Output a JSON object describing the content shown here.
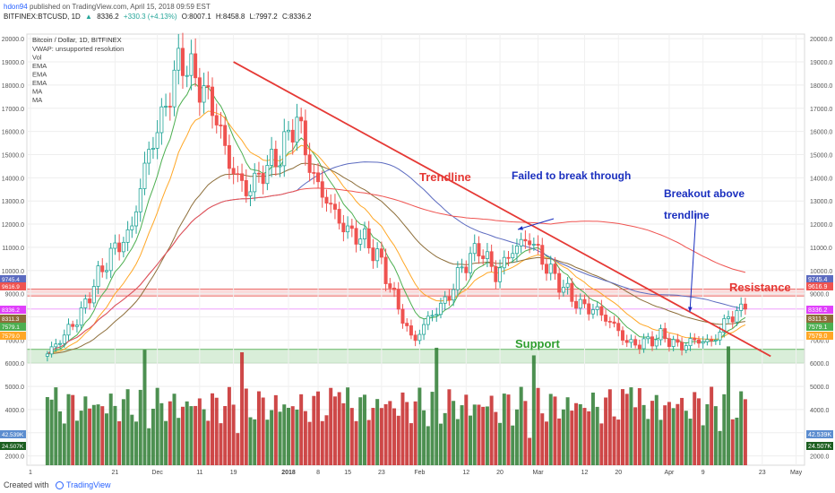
{
  "header": {
    "user": "hdon94",
    "published_text": "published on TradingView.com, April 15, 2018 09:59 EST",
    "symbol": "BITFINEX:BTCUSD, 1D",
    "last": "8336.2",
    "change": "+330.3 (+4.13%)",
    "ohlc": {
      "o": "O:8007.1",
      "h": "H:8458.8",
      "l": "L:7997.2",
      "c": "C:8336.2"
    }
  },
  "footer": {
    "created": "Created with",
    "brand": "TradingView"
  },
  "colors": {
    "up": "#26a69a",
    "down": "#ef5350",
    "trendline": "#e53935",
    "ema_fast": "#4caf50",
    "ema_mid": "#ffa726",
    "ema_slow": "#8d6e3a",
    "ma_blue": "#5c6bc0",
    "ma_red": "#ef5350",
    "annotation_blue": "#1a2fbf",
    "support": "#2e9e2e",
    "resistance": "#e53935"
  },
  "chart_data": {
    "type": "candlestick",
    "title": "Bitcoin / Dollar, 1D, BITFINEX",
    "indicators": [
      "VWAP: unsupported resolution",
      "Vol",
      "EMA",
      "EMA",
      "EMA",
      "MA",
      "MA"
    ],
    "x_ticks": [
      "1",
      "21",
      "Dec",
      "11",
      "19",
      "2018",
      "8",
      "15",
      "23",
      "Feb",
      "12",
      "20",
      "Mar",
      "12",
      "20",
      "Apr",
      "9",
      "23",
      "May"
    ],
    "y_ticks": [
      20000,
      19000,
      18000,
      17000,
      16000,
      15000,
      14000,
      13000,
      12000,
      11000,
      10000,
      9000,
      8000,
      7000,
      6000,
      5000,
      4000,
      3000,
      2000
    ],
    "y_range": [
      1600,
      20200
    ],
    "price_anchors": [
      6400,
      7200,
      8100,
      9700,
      10900,
      11600,
      14900,
      16800,
      19200,
      18200,
      17000,
      14500,
      13400,
      14300,
      15000,
      16600,
      14000,
      12800,
      11700,
      11400,
      10500,
      8600,
      6900,
      8000,
      8700,
      10200,
      11000,
      9800,
      10900,
      11400,
      10200,
      9300,
      8500,
      8300,
      7700,
      6800,
      6900,
      7200,
      6700,
      7000,
      6900,
      8000,
      8336
    ],
    "right_axis_labels": [
      {
        "value": "9745.4",
        "color": "#5c6bc0"
      },
      {
        "value": "9616.9",
        "color": "#ef5350"
      },
      {
        "value": "8336.2",
        "color": "#e040fb"
      },
      {
        "value": "8311.3",
        "color": "#8d6e3a"
      },
      {
        "value": "7579.1",
        "color": "#4caf50"
      },
      {
        "value": "7579.0",
        "color": "#ffa726"
      },
      {
        "value": "42.539K",
        "color": "#5c8dcf"
      },
      {
        "value": "24.507K",
        "color": "#1b5e20"
      }
    ],
    "zones": [
      {
        "name": "Support",
        "low": 6000,
        "high": 6600
      },
      {
        "name": "Resistance",
        "low": 8900,
        "high": 9200
      }
    ],
    "trendline": {
      "from": {
        "date": "Dec 19",
        "value": 19000
      },
      "to": {
        "date": "Apr 25",
        "value": 6300
      }
    },
    "annotations": [
      "Trendline",
      "Failed to break through",
      "Breakout above",
      "trendline",
      "Resistance",
      "Support"
    ]
  }
}
